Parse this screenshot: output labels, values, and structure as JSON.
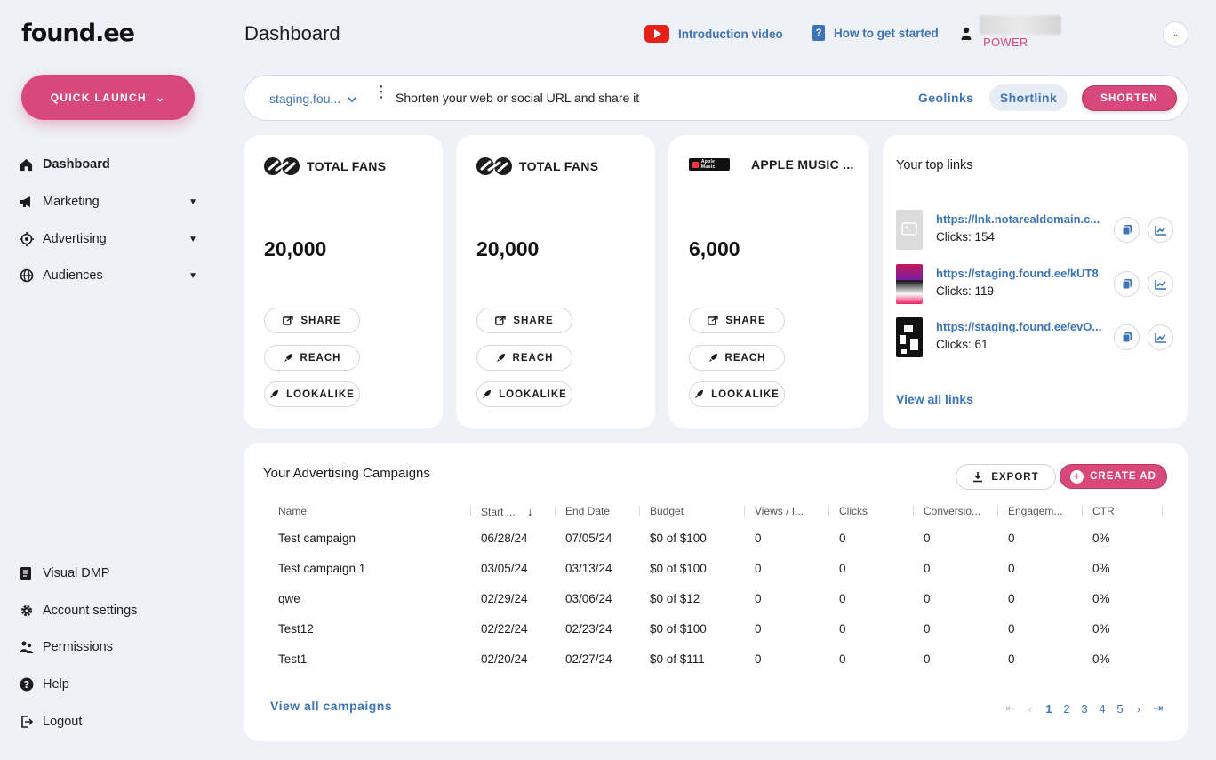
{
  "app": {
    "logo": "found.ee",
    "quick_launch": "QUICK LAUNCH"
  },
  "sidebar": {
    "items": [
      {
        "label": "Dashboard",
        "icon": "home-icon"
      },
      {
        "label": "Marketing",
        "icon": "megaphone-icon"
      },
      {
        "label": "Advertising",
        "icon": "target-icon"
      },
      {
        "label": "Audiences",
        "icon": "globe-icon"
      }
    ],
    "bottom": [
      {
        "label": "Visual DMP",
        "icon": "document-icon"
      },
      {
        "label": "Account settings",
        "icon": "gear-icon"
      },
      {
        "label": "Permissions",
        "icon": "users-icon"
      },
      {
        "label": "Help",
        "icon": "help-icon"
      },
      {
        "label": "Logout",
        "icon": "logout-icon"
      }
    ]
  },
  "header": {
    "title": "Dashboard",
    "intro_video": "Introduction video",
    "get_started": "How to get started",
    "user_role": "POWER"
  },
  "shortener": {
    "domain": "staging.fou...",
    "placeholder": "Shorten your web or social URL and share it",
    "geolinks": "Geolinks",
    "shortlink": "Shortlink",
    "shorten": "SHORTEN"
  },
  "cards": [
    {
      "title": "TOTAL FANS",
      "value": "20,000",
      "icon": "found-loop-icon"
    },
    {
      "title": "TOTAL FANS",
      "value": "20,000",
      "icon": "found-loop-icon"
    },
    {
      "title": "APPLE MUSIC ...",
      "value": "6,000",
      "icon": "apple-music-badge-icon",
      "badge": "Apple Music"
    }
  ],
  "card_actions": {
    "share": "SHARE",
    "reach": "REACH",
    "lookalike": "LOOKALIKE"
  },
  "top_links": {
    "title": "Your top links",
    "items": [
      {
        "url": "https://lnk.notarealdomain.c...",
        "clicks": "Clicks: 154"
      },
      {
        "url": "https://staging.found.ee/kUT8",
        "clicks": "Clicks: 119"
      },
      {
        "url": "https://staging.found.ee/evO...",
        "clicks": "Clicks: 61"
      }
    ],
    "view_all": "View all links"
  },
  "campaigns": {
    "title": "Your Advertising Campaigns",
    "export": "EXPORT",
    "create": "CREATE AD",
    "columns": [
      "Name",
      "Start ...",
      "End Date",
      "Budget",
      "Views / I...",
      "Clicks",
      "Conversio...",
      "Engagem...",
      "CTR"
    ],
    "rows": [
      [
        "Test campaign",
        "06/28/24",
        "07/05/24",
        "$0 of $100",
        "0",
        "0",
        "0",
        "0",
        "0%"
      ],
      [
        "Test campaign 1",
        "03/05/24",
        "03/13/24",
        "$0 of $100",
        "0",
        "0",
        "0",
        "0",
        "0%"
      ],
      [
        "qwe",
        "02/29/24",
        "03/06/24",
        "$0 of $12",
        "0",
        "0",
        "0",
        "0",
        "0%"
      ],
      [
        "Test12",
        "02/22/24",
        "02/23/24",
        "$0 of $100",
        "0",
        "0",
        "0",
        "0",
        "0%"
      ],
      [
        "Test1",
        "02/20/24",
        "02/27/24",
        "$0 of $111",
        "0",
        "0",
        "0",
        "0",
        "0%"
      ]
    ],
    "view_all": "View all campaigns",
    "pages": [
      "1",
      "2",
      "3",
      "4",
      "5"
    ],
    "current_page": "1"
  },
  "colors": {
    "accent": "#d9487a",
    "link": "#3d74b5",
    "background": "#eef1f7"
  }
}
